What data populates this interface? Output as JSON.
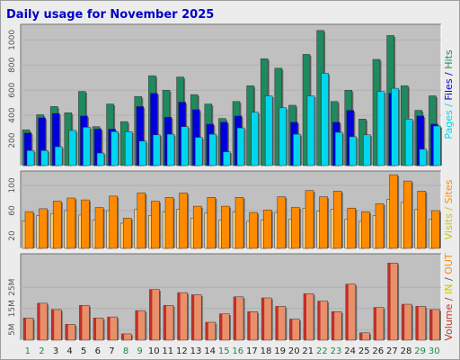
{
  "title": "Daily usage for November 2025",
  "colors": {
    "panel": "#c0c0c0",
    "hits": "#1e8a5e",
    "files": "#0000dc",
    "pages": "#00d6ee",
    "visits": "#ff8a00",
    "sites": "#ff8a00",
    "volume": "#c0302a",
    "weekday": "#222222",
    "weekend": "#1a8a4a"
  },
  "chart_data": [
    {
      "type": "bar",
      "name": "hits-files-pages",
      "categories": [
        "1",
        "2",
        "3",
        "4",
        "5",
        "6",
        "7",
        "8",
        "9",
        "10",
        "11",
        "12",
        "13",
        "14",
        "15",
        "16",
        "17",
        "18",
        "19",
        "20",
        "21",
        "22",
        "23",
        "24",
        "25",
        "26",
        "27",
        "28",
        "29",
        "30"
      ],
      "weekend_days": [
        "1",
        "2",
        "8",
        "9",
        "15",
        "16",
        "22",
        "23",
        "29",
        "30"
      ],
      "series": [
        {
          "name": "Hits",
          "values": [
            285,
            405,
            470,
            420,
            590,
            310,
            490,
            350,
            550,
            715,
            600,
            705,
            565,
            490,
            375,
            510,
            635,
            850,
            775,
            480,
            885,
            1075,
            510,
            600,
            370,
            845,
            1035,
            635,
            440,
            555
          ]
        },
        {
          "name": "Files",
          "values": [
            260,
            380,
            415,
            0,
            395,
            290,
            290,
            0,
            470,
            575,
            385,
            505,
            445,
            330,
            345,
            395,
            0,
            0,
            0,
            345,
            0,
            0,
            345,
            440,
            0,
            0,
            575,
            0,
            395,
            330
          ]
        },
        {
          "name": "Pages",
          "values": [
            120,
            120,
            150,
            280,
            305,
            100,
            270,
            270,
            195,
            245,
            250,
            310,
            225,
            250,
            110,
            300,
            425,
            555,
            460,
            250,
            555,
            735,
            265,
            230,
            245,
            590,
            615,
            370,
            130,
            315
          ]
        }
      ],
      "yticks": [
        200,
        400,
        600,
        800,
        1000
      ],
      "ylim": [
        0,
        1110
      ],
      "legend": [
        "Pages",
        "Files",
        "Hits"
      ]
    },
    {
      "type": "bar",
      "name": "visits-sites",
      "categories": [
        "1",
        "2",
        "3",
        "4",
        "5",
        "6",
        "7",
        "8",
        "9",
        "10",
        "11",
        "12",
        "13",
        "14",
        "15",
        "16",
        "17",
        "18",
        "19",
        "20",
        "21",
        "22",
        "23",
        "24",
        "25",
        "26",
        "27",
        "28",
        "29",
        "30"
      ],
      "series": [
        {
          "name": "Visits",
          "values": [
            58,
            63,
            75,
            80,
            77,
            65,
            83,
            48,
            88,
            75,
            81,
            88,
            67,
            81,
            67,
            81,
            57,
            61,
            82,
            65,
            92,
            82,
            91,
            64,
            58,
            71,
            117,
            107,
            91,
            60
          ]
        },
        {
          "name": "Sites",
          "values": [
            44,
            52,
            55,
            60,
            53,
            45,
            60,
            40,
            62,
            52,
            58,
            62,
            48,
            56,
            45,
            58,
            43,
            45,
            57,
            46,
            64,
            59,
            62,
            46,
            43,
            52,
            78,
            73,
            62,
            46
          ]
        }
      ],
      "yticks": [
        20,
        60,
        100
      ],
      "ylim": [
        0,
        120
      ],
      "legend": [
        "Visits",
        "Sites"
      ]
    },
    {
      "type": "bar",
      "name": "volume",
      "categories": [
        "1",
        "2",
        "3",
        "4",
        "5",
        "6",
        "7",
        "8",
        "9",
        "10",
        "11",
        "12",
        "13",
        "14",
        "15",
        "16",
        "17",
        "18",
        "19",
        "20",
        "21",
        "22",
        "23",
        "24",
        "25",
        "26",
        "27",
        "28",
        "29",
        "30"
      ],
      "series": [
        {
          "name": "Volume",
          "values": [
            10.5,
            17.5,
            14.5,
            7.5,
            16.5,
            10.5,
            11.0,
            3.0,
            14.0,
            24.0,
            16.5,
            22.5,
            21.5,
            8.5,
            12.5,
            20.5,
            13.5,
            20.0,
            16.0,
            10.0,
            22.0,
            18.5,
            13.5,
            26.5,
            3.5,
            15.5,
            36.5,
            17.0,
            16.0,
            14.5
          ]
        }
      ],
      "yticks": [
        5,
        15,
        25
      ],
      "ylim": [
        0,
        40
      ],
      "tick_suffix": "M",
      "legend": [
        "Volume",
        "IN",
        "/",
        "OUT"
      ]
    }
  ],
  "legend_colors": {
    "Pages": "#00d6ee",
    "Files": "#0000dc",
    "Hits": "#1e8a5e",
    "Visits": "#c8c800",
    "Sites": "#ff8a00",
    "Volume": "#c0302a",
    "IN": "#c8c800",
    "OUT": "#ff8a00",
    "/": "#555555"
  }
}
